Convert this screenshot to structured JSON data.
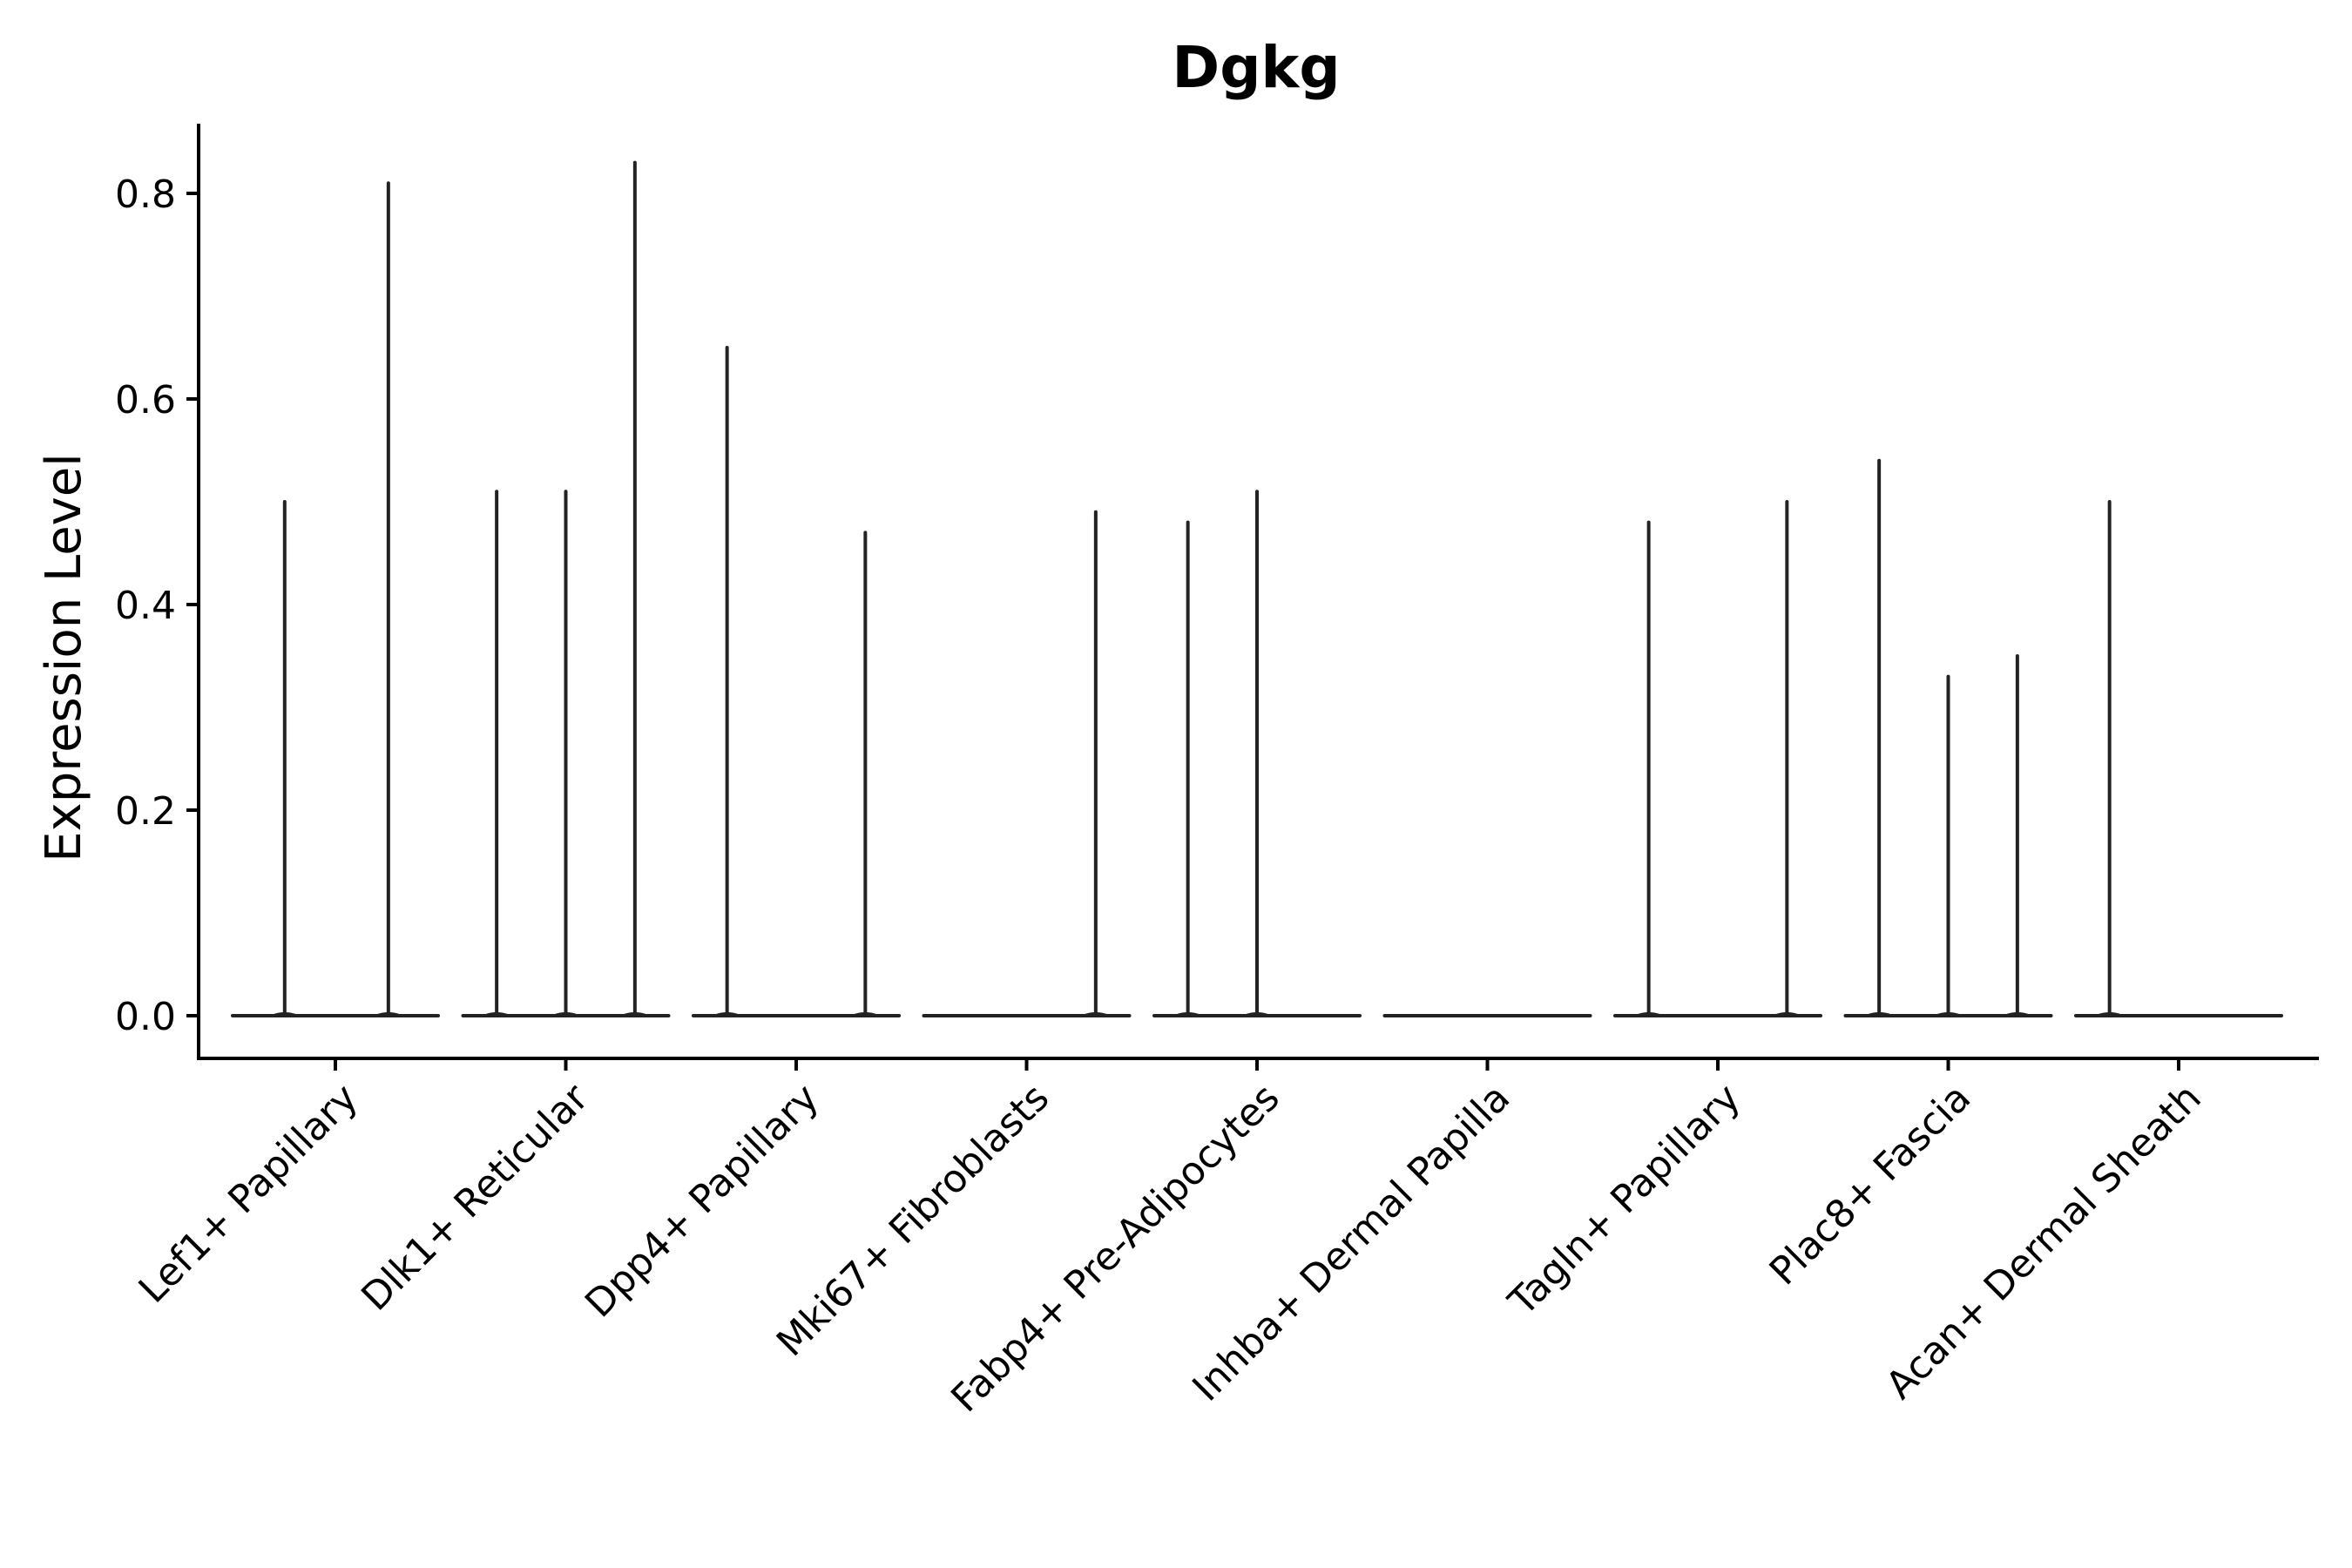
{
  "chart_data": {
    "type": "violin",
    "title": "Dgkg",
    "xlabel": "",
    "ylabel": "Expression Level",
    "ylim": [
      -0.04,
      0.87
    ],
    "yticks": [
      0.0,
      0.2,
      0.4,
      0.6,
      0.8
    ],
    "ytick_labels": [
      "0.0",
      "0.2",
      "0.4",
      "0.6",
      "0.8"
    ],
    "categories": [
      "Lef1+ Papillary",
      "Dlk1+ Reticular",
      "Dpp4+ Papillary",
      "Mki67+ Fibroblasts",
      "Fabp4+ Pre-Adipocytes",
      "Inhba+ Dermal Papilla",
      "Tagln+ Papillary",
      "Plac8+ Fascia",
      "Acan+ Dermal Sheath"
    ],
    "violins": [
      {
        "category": "Lef1+ Papillary",
        "median": 0.0,
        "spikes": [
          {
            "offset": -0.22,
            "max": 0.5
          },
          {
            "offset": 0.23,
            "max": 0.81
          }
        ]
      },
      {
        "category": "Dlk1+ Reticular",
        "median": 0.0,
        "spikes": [
          {
            "offset": -0.3,
            "max": 0.51
          },
          {
            "offset": 0.0,
            "max": 0.51
          },
          {
            "offset": 0.3,
            "max": 0.83
          }
        ]
      },
      {
        "category": "Dpp4+ Papillary",
        "median": 0.0,
        "spikes": [
          {
            "offset": -0.3,
            "max": 0.65
          },
          {
            "offset": 0.3,
            "max": 0.47
          }
        ]
      },
      {
        "category": "Mki67+ Fibroblasts",
        "median": 0.0,
        "spikes": [
          {
            "offset": 0.3,
            "max": 0.49
          }
        ]
      },
      {
        "category": "Fabp4+ Pre-Adipocytes",
        "median": 0.0,
        "spikes": [
          {
            "offset": -0.3,
            "max": 0.48
          },
          {
            "offset": 0.0,
            "max": 0.51
          }
        ]
      },
      {
        "category": "Inhba+ Dermal Papilla",
        "median": 0.0,
        "spikes": []
      },
      {
        "category": "Tagln+ Papillary",
        "median": 0.0,
        "spikes": [
          {
            "offset": -0.3,
            "max": 0.48
          },
          {
            "offset": 0.3,
            "max": 0.5
          }
        ]
      },
      {
        "category": "Plac8+ Fascia",
        "median": 0.0,
        "spikes": [
          {
            "offset": -0.3,
            "max": 0.54
          },
          {
            "offset": 0.0,
            "max": 0.33
          },
          {
            "offset": 0.3,
            "max": 0.35
          }
        ]
      },
      {
        "category": "Acan+ Dermal Sheath",
        "median": 0.0,
        "spikes": [
          {
            "offset": -0.3,
            "max": 0.5
          }
        ]
      }
    ],
    "grid": false,
    "legend": "none"
  },
  "colors": {
    "violin_stroke": "#222222",
    "axis": "#000000",
    "background": "#ffffff"
  }
}
